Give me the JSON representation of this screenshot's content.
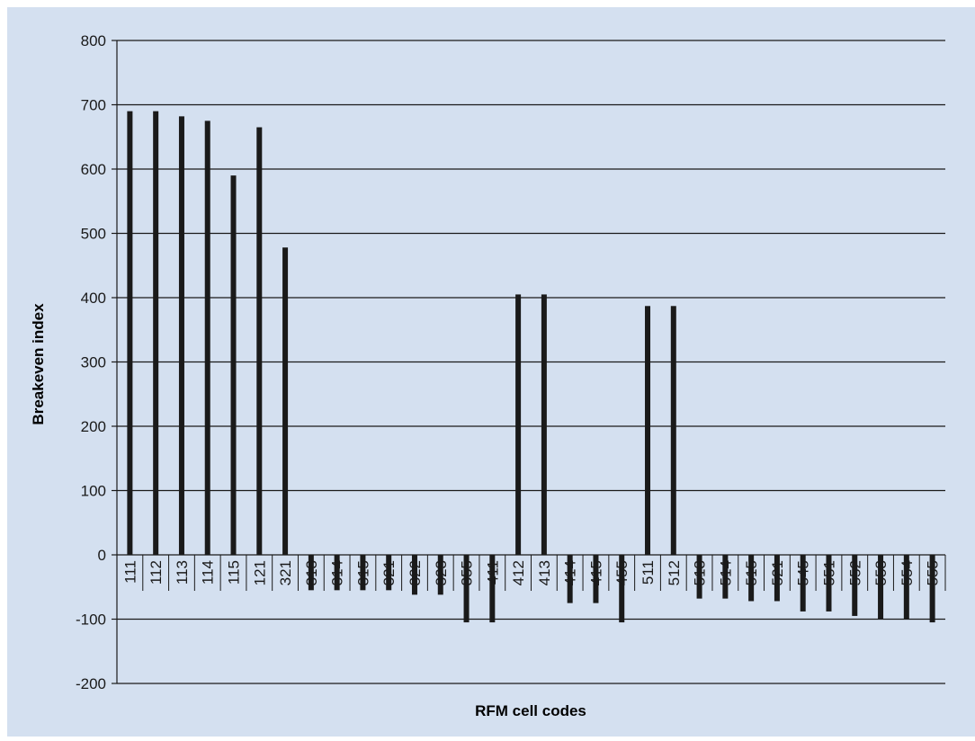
{
  "colors": {
    "panel_background": "#d4e0f0",
    "bar": "#1a1a1a",
    "gridline": "#1a1a1a",
    "text": "#1a1a1a"
  },
  "chart_data": {
    "type": "bar",
    "title": "",
    "xlabel": "RFM cell codes",
    "ylabel": "Breakeven index",
    "ylim": [
      -200,
      800
    ],
    "yticks": [
      -200,
      -100,
      0,
      100,
      200,
      300,
      400,
      500,
      600,
      700,
      800
    ],
    "grid": true,
    "legend": "none",
    "categories": [
      "111",
      "112",
      "113",
      "114",
      "115",
      "121",
      "321",
      "313",
      "314",
      "315",
      "321",
      "322",
      "323",
      "355",
      "411",
      "412",
      "413",
      "414",
      "415",
      "455",
      "511",
      "512",
      "513",
      "514",
      "515",
      "521",
      "545",
      "551",
      "552",
      "553",
      "554",
      "555"
    ],
    "values": [
      690,
      690,
      682,
      675,
      590,
      665,
      478,
      -55,
      -55,
      -55,
      -55,
      -62,
      -62,
      -105,
      -105,
      405,
      405,
      -75,
      -75,
      -105,
      387,
      387,
      -68,
      -68,
      -72,
      -72,
      -88,
      -88,
      -95,
      -100,
      -100,
      -105
    ]
  }
}
